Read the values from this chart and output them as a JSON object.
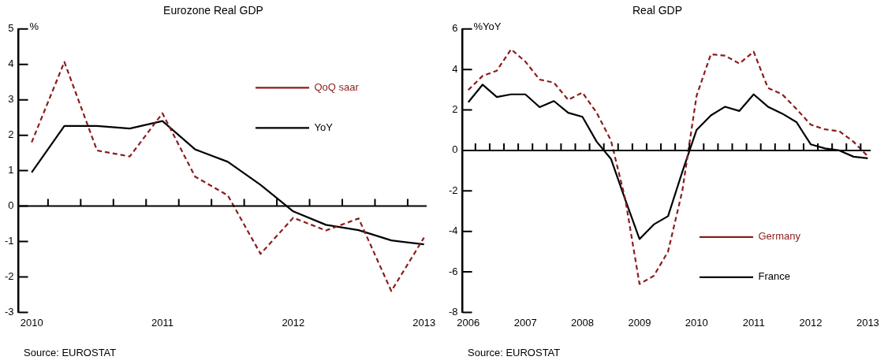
{
  "chart_data": [
    {
      "type": "line",
      "title": "Eurozone Real GDP",
      "ylabel": "%",
      "x": [
        2010,
        2010.25,
        2010.5,
        2010.75,
        2011,
        2011.25,
        2011.5,
        2011.75,
        2012,
        2012.25,
        2012.5,
        2012.75,
        2013
      ],
      "series": [
        {
          "name": "QoQ saar",
          "color": "#8c1c1c",
          "line_style": "dashed",
          "values": [
            1.8,
            4.07,
            1.57,
            1.4,
            2.62,
            0.83,
            0.3,
            -1.35,
            -0.33,
            -0.69,
            -0.35,
            -2.4,
            -0.89
          ]
        },
        {
          "name": "YoY",
          "color": "#000000",
          "line_style": "solid",
          "values": [
            0.95,
            2.26,
            2.26,
            2.19,
            2.4,
            1.6,
            1.25,
            0.6,
            -0.15,
            -0.53,
            -0.68,
            -0.97,
            -1.08
          ]
        }
      ],
      "xlim": [
        2009.9,
        2013.02
      ],
      "xticks": [
        2010,
        2011,
        2012,
        2013,
        {
          "value": 2010.125,
          "label": null
        },
        {
          "value": 2010.375,
          "label": null
        },
        {
          "value": 2010.625,
          "label": null
        },
        {
          "value": 2010.875,
          "label": null
        },
        {
          "value": 2011.125,
          "label": null
        },
        {
          "value": 2011.375,
          "label": null
        },
        {
          "value": 2011.625,
          "label": null
        },
        {
          "value": 2011.875,
          "label": null
        },
        {
          "value": 2012.125,
          "label": null
        },
        {
          "value": 2012.375,
          "label": null
        },
        {
          "value": 2012.625,
          "label": null
        },
        {
          "value": 2012.875,
          "label": null
        }
      ],
      "ylim": [
        -3,
        5
      ],
      "yticks": [
        -3,
        -2,
        -1,
        0,
        1,
        2,
        3,
        4,
        5
      ],
      "ref_lines": [
        {
          "axis": "y",
          "value": 0,
          "color": "#000000"
        }
      ],
      "legend": "top right",
      "grid": false,
      "marker": "none",
      "annotations": [
        "Source: EUROSTAT"
      ]
    },
    {
      "type": "line",
      "title": "Real GDP",
      "ylabel": "%YoY",
      "x": [
        2006,
        2006.25,
        2006.5,
        2006.75,
        2007,
        2007.25,
        2007.5,
        2007.75,
        2008,
        2008.25,
        2008.5,
        2008.75,
        2009,
        2009.25,
        2009.5,
        2009.75,
        2010,
        2010.25,
        2010.5,
        2010.75,
        2011,
        2011.25,
        2011.5,
        2011.75,
        2012,
        2012.25,
        2012.5,
        2012.75,
        2013
      ],
      "series": [
        {
          "name": "Germany",
          "color": "#8c1c1c",
          "line_style": "dashed",
          "values": [
            2.99,
            3.68,
            3.94,
            5.0,
            4.39,
            3.5,
            3.35,
            2.5,
            2.86,
            1.86,
            0.49,
            -2.4,
            -6.6,
            -6.2,
            -5.0,
            -2.0,
            2.7,
            4.75,
            4.68,
            4.29,
            4.88,
            3.09,
            2.77,
            2.05,
            1.27,
            1.04,
            0.95,
            0.43,
            -0.29
          ]
        },
        {
          "name": "France",
          "color": "#000000",
          "line_style": "solid",
          "values": [
            2.38,
            3.25,
            2.64,
            2.77,
            2.77,
            2.14,
            2.44,
            1.86,
            1.66,
            0.43,
            -0.42,
            -2.43,
            -4.38,
            -3.66,
            -3.25,
            -1.06,
            1.01,
            1.73,
            2.16,
            1.95,
            2.77,
            2.16,
            1.82,
            1.4,
            0.3,
            0.1,
            0.0,
            -0.31,
            -0.39
          ]
        }
      ],
      "xlim": [
        2005.9,
        2013.05
      ],
      "xticks": [
        2006,
        2007,
        2008,
        2009,
        2010,
        2011,
        2012,
        2013,
        {
          "value": 2006.125,
          "label": null
        },
        {
          "value": 2006.375,
          "label": null
        },
        {
          "value": 2006.625,
          "label": null
        },
        {
          "value": 2006.875,
          "label": null
        },
        {
          "value": 2007.125,
          "label": null
        },
        {
          "value": 2007.375,
          "label": null
        },
        {
          "value": 2007.625,
          "label": null
        },
        {
          "value": 2007.875,
          "label": null
        },
        {
          "value": 2008.125,
          "label": null
        },
        {
          "value": 2008.375,
          "label": null
        },
        {
          "value": 2008.625,
          "label": null
        },
        {
          "value": 2008.875,
          "label": null
        },
        {
          "value": 2009.125,
          "label": null
        },
        {
          "value": 2009.375,
          "label": null
        },
        {
          "value": 2009.625,
          "label": null
        },
        {
          "value": 2009.875,
          "label": null
        },
        {
          "value": 2010.125,
          "label": null
        },
        {
          "value": 2010.375,
          "label": null
        },
        {
          "value": 2010.625,
          "label": null
        },
        {
          "value": 2010.875,
          "label": null
        },
        {
          "value": 2011.125,
          "label": null
        },
        {
          "value": 2011.375,
          "label": null
        },
        {
          "value": 2011.625,
          "label": null
        },
        {
          "value": 2011.875,
          "label": null
        },
        {
          "value": 2012.125,
          "label": null
        },
        {
          "value": 2012.375,
          "label": null
        },
        {
          "value": 2012.625,
          "label": null
        },
        {
          "value": 2012.875,
          "label": null
        }
      ],
      "ylim": [
        -8,
        6
      ],
      "yticks": [
        -8,
        -6,
        -4,
        -2,
        0,
        2,
        4,
        6
      ],
      "ref_lines": [
        {
          "axis": "y",
          "value": 0,
          "color": "#000000"
        }
      ],
      "legend": "bottom right",
      "grid": false,
      "marker": "none",
      "annotations": [
        "Source: EUROSTAT"
      ]
    }
  ]
}
